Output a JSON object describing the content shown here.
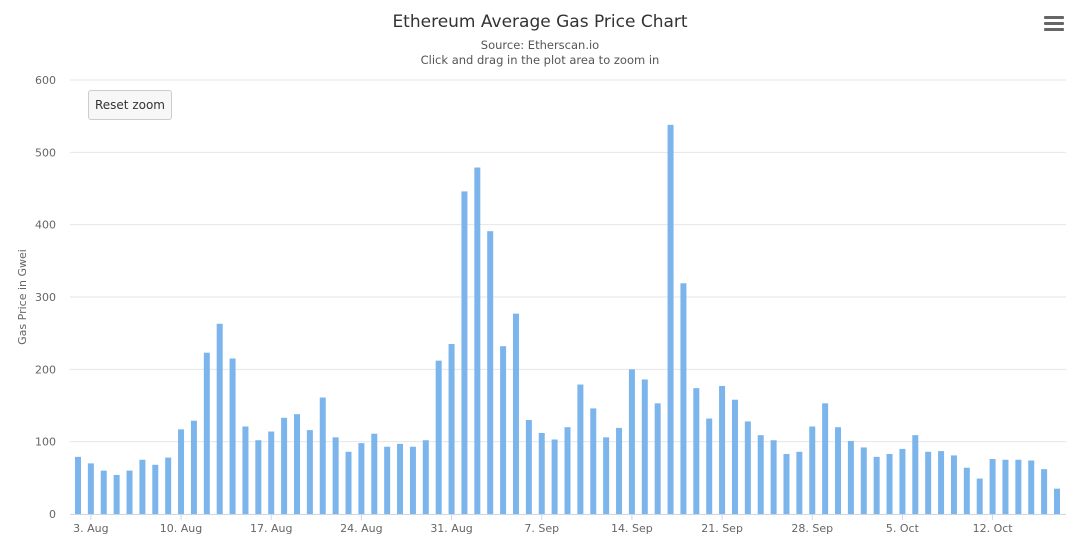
{
  "chart_data": {
    "type": "bar",
    "title": "Ethereum Average Gas Price Chart",
    "subtitle": "Source: Etherscan.io",
    "instruction": "Click and drag in the plot area to zoom in",
    "ylabel": "Gas Price in Gwei",
    "xlabel": "",
    "ylim": [
      0,
      600
    ],
    "yticks": [
      0,
      100,
      200,
      300,
      400,
      500,
      600
    ],
    "xticks": [
      "3. Aug",
      "10. Aug",
      "17. Aug",
      "24. Aug",
      "31. Aug",
      "7. Sep",
      "14. Sep",
      "21. Sep",
      "28. Sep",
      "5. Oct",
      "12. Oct"
    ],
    "grid": true,
    "legend": "none",
    "bar_color": "#7cb5ec",
    "series": [
      {
        "values": [
          79,
          70,
          60,
          54,
          60,
          75,
          68,
          78,
          117,
          129,
          223,
          263,
          215,
          121,
          102,
          114,
          133,
          138,
          116,
          161,
          106,
          86,
          98,
          111,
          93,
          97,
          93,
          102,
          212,
          235,
          446,
          479,
          391,
          232,
          277,
          130,
          112,
          103,
          120,
          179,
          146,
          106,
          119,
          200,
          186,
          153,
          538,
          319,
          174,
          132,
          177,
          158,
          128,
          109,
          102,
          83,
          86,
          121,
          153,
          120,
          101,
          92,
          79,
          83,
          90,
          109,
          86,
          87,
          81,
          64,
          49,
          76,
          75,
          75,
          74,
          62,
          35
        ]
      }
    ]
  },
  "ui": {
    "reset_zoom_label": "Reset zoom"
  }
}
